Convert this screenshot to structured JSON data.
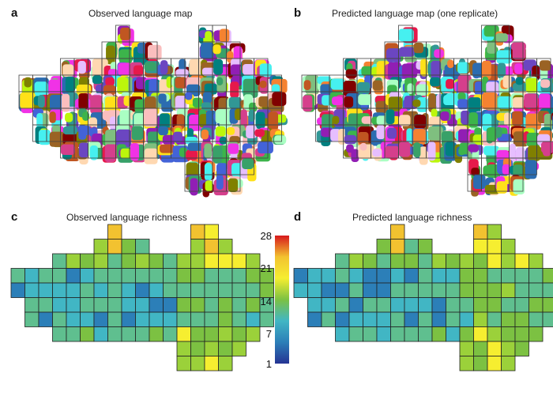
{
  "panels": [
    {
      "letter": "a",
      "title": "Observed language map"
    },
    {
      "letter": "b",
      "title": "Predicted language map (one replicate)"
    },
    {
      "letter": "c",
      "title": "Observed language richness"
    },
    {
      "letter": "d",
      "title": "Predicted language richness"
    }
  ],
  "colorbar": {
    "ticks": [
      "28",
      "21",
      "14",
      "7",
      "1"
    ],
    "colors": [
      "#d7191c",
      "#f2c230",
      "#f6ee30",
      "#7cc142",
      "#41b6c4",
      "#2c7fb8",
      "#253494"
    ]
  },
  "palette_patches": [
    "#e6194b",
    "#3cb44b",
    "#ffe119",
    "#4363d8",
    "#f58231",
    "#911eb4",
    "#46f0f0",
    "#f032e6",
    "#bcf60c",
    "#fabebe",
    "#008080",
    "#e6beff",
    "#9a6324",
    "#7fbf7f",
    "#800000",
    "#aaffc3",
    "#808000",
    "#ffd8b1",
    "#2b6cb0",
    "#c05621",
    "#6b46c1",
    "#38a169",
    "#d53f8c",
    "#319795"
  ],
  "palette_richness": [
    "#253494",
    "#2c5fa8",
    "#2c7fb8",
    "#41b6c4",
    "#5fbf8f",
    "#7cc142",
    "#9bd13a",
    "#f6ee30",
    "#f2c230",
    "#d7191c"
  ]
}
